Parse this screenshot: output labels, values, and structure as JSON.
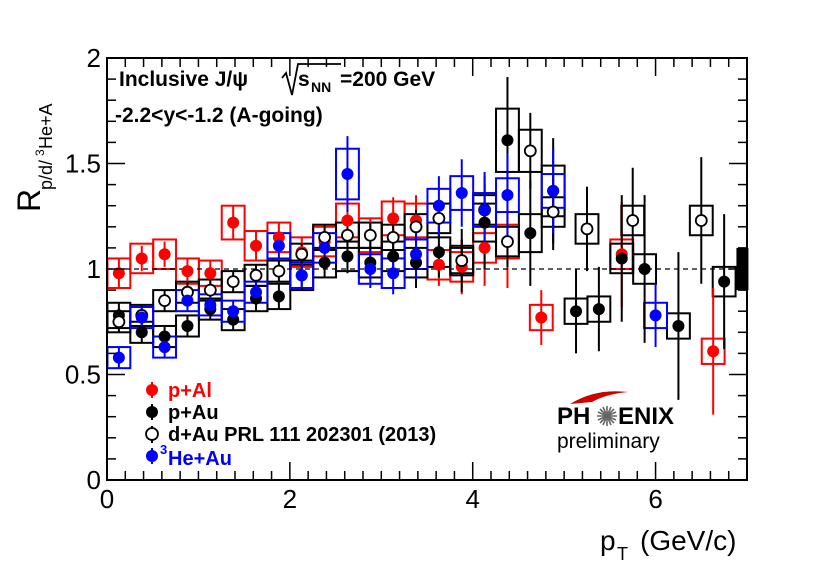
{
  "chart_data": {
    "type": "scatter",
    "title": "",
    "xlabel": "p_T (GeV/c)",
    "ylabel": "R_p/d/3He+A",
    "xlim": [
      0,
      7
    ],
    "ylim": [
      0,
      2
    ],
    "x_ticks": [
      "0",
      "2",
      "4",
      "6"
    ],
    "y_ticks": [
      "0",
      "0.5",
      "1",
      "1.5",
      "2"
    ],
    "annotations": {
      "line1": "Inclusive J/ψ",
      "sqrt_label": "s",
      "sqrt_sub": "NN",
      "energy": "=200 GeV",
      "line2": "-2.2<y<-1.2 (A-going)"
    },
    "reference_line": 1.0,
    "global_uncertainty": {
      "x": 6.95,
      "low": 0.9,
      "high": 1.1
    },
    "logo": {
      "text_left": "PH",
      "text_right": "ENIX",
      "subtitle": "preliminary"
    },
    "series": [
      {
        "name": "p+Al",
        "color": "#ff0000",
        "filled": true,
        "points": [
          {
            "x": 0.13,
            "y": 0.98,
            "err": 0.07,
            "sys": 0.07
          },
          {
            "x": 0.38,
            "y": 1.05,
            "err": 0.06,
            "sys": 0.07
          },
          {
            "x": 0.63,
            "y": 1.07,
            "err": 0.06,
            "sys": 0.07
          },
          {
            "x": 0.88,
            "y": 0.99,
            "err": 0.06,
            "sys": 0.06
          },
          {
            "x": 1.13,
            "y": 0.98,
            "err": 0.06,
            "sys": 0.06
          },
          {
            "x": 1.38,
            "y": 1.22,
            "err": 0.08,
            "sys": 0.08
          },
          {
            "x": 1.63,
            "y": 1.11,
            "err": 0.07,
            "sys": 0.07
          },
          {
            "x": 1.88,
            "y": 1.15,
            "err": 0.07,
            "sys": 0.07
          },
          {
            "x": 2.13,
            "y": 1.08,
            "err": 0.07,
            "sys": 0.07
          },
          {
            "x": 2.38,
            "y": 1.13,
            "err": 0.07,
            "sys": 0.07
          },
          {
            "x": 2.63,
            "y": 1.23,
            "err": 0.09,
            "sys": 0.08
          },
          {
            "x": 2.88,
            "y": 1.16,
            "err": 0.08,
            "sys": 0.08
          },
          {
            "x": 3.13,
            "y": 1.24,
            "err": 0.1,
            "sys": 0.08
          },
          {
            "x": 3.38,
            "y": 1.23,
            "err": 0.12,
            "sys": 0.08
          },
          {
            "x": 3.63,
            "y": 1.02,
            "err": 0.1,
            "sys": 0.07
          },
          {
            "x": 3.88,
            "y": 1.01,
            "err": 0.13,
            "sys": 0.07
          },
          {
            "x": 4.13,
            "y": 1.1,
            "err": 0.18,
            "sys": 0.07
          },
          {
            "x": 4.38,
            "y": 1.13,
            "err": 0.22,
            "sys": 0.08
          },
          {
            "x": 4.75,
            "y": 0.77,
            "err": 0.13,
            "sys": 0.06
          },
          {
            "x": 5.63,
            "y": 1.07,
            "err": 0.25,
            "sys": 0.07
          },
          {
            "x": 6.63,
            "y": 0.61,
            "err": 0.3,
            "sys": 0.06
          }
        ]
      },
      {
        "name": "p+Au",
        "color": "#000000",
        "filled": true,
        "points": [
          {
            "x": 0.13,
            "y": 0.78,
            "err": 0.06,
            "sys": 0.06
          },
          {
            "x": 0.38,
            "y": 0.7,
            "err": 0.05,
            "sys": 0.05
          },
          {
            "x": 0.63,
            "y": 0.68,
            "err": 0.05,
            "sys": 0.05
          },
          {
            "x": 0.88,
            "y": 0.73,
            "err": 0.05,
            "sys": 0.05
          },
          {
            "x": 1.13,
            "y": 0.81,
            "err": 0.05,
            "sys": 0.05
          },
          {
            "x": 1.38,
            "y": 0.76,
            "err": 0.05,
            "sys": 0.05
          },
          {
            "x": 1.63,
            "y": 0.86,
            "err": 0.06,
            "sys": 0.06
          },
          {
            "x": 1.88,
            "y": 0.87,
            "err": 0.06,
            "sys": 0.06
          },
          {
            "x": 2.13,
            "y": 0.97,
            "err": 0.07,
            "sys": 0.07
          },
          {
            "x": 2.38,
            "y": 1.03,
            "err": 0.07,
            "sys": 0.07
          },
          {
            "x": 2.63,
            "y": 1.06,
            "err": 0.08,
            "sys": 0.07
          },
          {
            "x": 2.88,
            "y": 1.03,
            "err": 0.08,
            "sys": 0.07
          },
          {
            "x": 3.13,
            "y": 1.06,
            "err": 0.1,
            "sys": 0.07
          },
          {
            "x": 3.38,
            "y": 1.03,
            "err": 0.12,
            "sys": 0.07
          },
          {
            "x": 3.63,
            "y": 1.08,
            "err": 0.12,
            "sys": 0.07
          },
          {
            "x": 3.88,
            "y": 1.04,
            "err": 0.15,
            "sys": 0.07
          },
          {
            "x": 4.13,
            "y": 1.22,
            "err": 0.22,
            "sys": 0.09
          },
          {
            "x": 4.38,
            "y": 1.61,
            "err": 0.3,
            "sys": 0.15
          },
          {
            "x": 4.63,
            "y": 1.17,
            "err": 0.25,
            "sys": 0.09
          },
          {
            "x": 4.88,
            "y": 1.37,
            "err": 0.25,
            "sys": 0.12
          },
          {
            "x": 5.13,
            "y": 0.8,
            "err": 0.2,
            "sys": 0.06
          },
          {
            "x": 5.38,
            "y": 0.81,
            "err": 0.2,
            "sys": 0.06
          },
          {
            "x": 5.63,
            "y": 1.05,
            "err": 0.3,
            "sys": 0.07
          },
          {
            "x": 5.88,
            "y": 1.0,
            "err": 0.35,
            "sys": 0.07
          },
          {
            "x": 6.25,
            "y": 0.73,
            "err": 0.35,
            "sys": 0.06
          },
          {
            "x": 6.75,
            "y": 0.94,
            "err": 0.32,
            "sys": 0.07
          }
        ]
      },
      {
        "name": "d+Au PRL 111 202301 (2013)",
        "color": "#000000",
        "filled": false,
        "points": [
          {
            "x": 0.13,
            "y": 0.75,
            "err": 0.05,
            "sys": 0.05
          },
          {
            "x": 0.38,
            "y": 0.78,
            "err": 0.05,
            "sys": 0.05
          },
          {
            "x": 0.63,
            "y": 0.85,
            "err": 0.05,
            "sys": 0.05
          },
          {
            "x": 0.88,
            "y": 0.89,
            "err": 0.05,
            "sys": 0.05
          },
          {
            "x": 1.13,
            "y": 0.9,
            "err": 0.05,
            "sys": 0.05
          },
          {
            "x": 1.38,
            "y": 0.94,
            "err": 0.05,
            "sys": 0.05
          },
          {
            "x": 1.63,
            "y": 0.97,
            "err": 0.05,
            "sys": 0.05
          },
          {
            "x": 1.88,
            "y": 0.99,
            "err": 0.05,
            "sys": 0.05
          },
          {
            "x": 2.13,
            "y": 1.07,
            "err": 0.05,
            "sys": 0.05
          },
          {
            "x": 2.38,
            "y": 1.15,
            "err": 0.06,
            "sys": 0.06
          },
          {
            "x": 2.63,
            "y": 1.16,
            "err": 0.06,
            "sys": 0.06
          },
          {
            "x": 2.88,
            "y": 1.16,
            "err": 0.06,
            "sys": 0.06
          },
          {
            "x": 3.13,
            "y": 1.15,
            "err": 0.07,
            "sys": 0.06
          },
          {
            "x": 3.38,
            "y": 1.2,
            "err": 0.08,
            "sys": 0.06
          },
          {
            "x": 3.63,
            "y": 1.24,
            "err": 0.09,
            "sys": 0.07
          },
          {
            "x": 3.88,
            "y": 1.04,
            "err": 0.1,
            "sys": 0.06
          },
          {
            "x": 4.13,
            "y": 1.28,
            "err": 0.12,
            "sys": 0.07
          },
          {
            "x": 4.38,
            "y": 1.13,
            "err": 0.12,
            "sys": 0.07
          },
          {
            "x": 4.63,
            "y": 1.56,
            "err": 0.18,
            "sys": 0.1
          },
          {
            "x": 4.88,
            "y": 1.27,
            "err": 0.18,
            "sys": 0.07
          },
          {
            "x": 5.25,
            "y": 1.19,
            "err": 0.2,
            "sys": 0.07
          },
          {
            "x": 5.75,
            "y": 1.23,
            "err": 0.25,
            "sys": 0.07
          },
          {
            "x": 6.5,
            "y": 1.23,
            "err": 0.3,
            "sys": 0.07
          }
        ]
      },
      {
        "name": "3He+Au",
        "sup": "3",
        "label": "He+Au",
        "color": "#0000ff",
        "filled": true,
        "points": [
          {
            "x": 0.13,
            "y": 0.58,
            "err": 0.05,
            "sys": 0.05
          },
          {
            "x": 0.38,
            "y": 0.77,
            "err": 0.05,
            "sys": 0.05
          },
          {
            "x": 0.63,
            "y": 0.63,
            "err": 0.05,
            "sys": 0.05
          },
          {
            "x": 0.88,
            "y": 0.85,
            "err": 0.05,
            "sys": 0.05
          },
          {
            "x": 1.13,
            "y": 0.83,
            "err": 0.05,
            "sys": 0.05
          },
          {
            "x": 1.38,
            "y": 0.8,
            "err": 0.05,
            "sys": 0.05
          },
          {
            "x": 1.63,
            "y": 0.89,
            "err": 0.05,
            "sys": 0.05
          },
          {
            "x": 1.88,
            "y": 1.11,
            "err": 0.06,
            "sys": 0.06
          },
          {
            "x": 2.13,
            "y": 0.97,
            "err": 0.06,
            "sys": 0.06
          },
          {
            "x": 2.38,
            "y": 1.1,
            "err": 0.07,
            "sys": 0.07
          },
          {
            "x": 2.63,
            "y": 1.45,
            "err": 0.18,
            "sys": 0.12
          },
          {
            "x": 2.88,
            "y": 1.0,
            "err": 0.09,
            "sys": 0.07
          },
          {
            "x": 3.13,
            "y": 0.98,
            "err": 0.1,
            "sys": 0.07
          },
          {
            "x": 3.38,
            "y": 1.07,
            "err": 0.12,
            "sys": 0.07
          },
          {
            "x": 3.63,
            "y": 1.3,
            "err": 0.14,
            "sys": 0.08
          },
          {
            "x": 3.88,
            "y": 1.36,
            "err": 0.16,
            "sys": 0.08
          },
          {
            "x": 4.13,
            "y": 1.28,
            "err": 0.18,
            "sys": 0.08
          },
          {
            "x": 4.38,
            "y": 1.35,
            "err": 0.2,
            "sys": 0.08
          },
          {
            "x": 4.88,
            "y": 1.37,
            "err": 0.2,
            "sys": 0.08
          },
          {
            "x": 6.0,
            "y": 0.78,
            "err": 0.15,
            "sys": 0.06
          }
        ]
      }
    ]
  }
}
